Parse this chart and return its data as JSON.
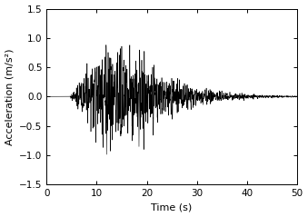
{
  "title": "",
  "xlabel": "Time (s)",
  "ylabel": "Acceleration (m/s²)",
  "xlim": [
    0,
    50
  ],
  "ylim": [
    -1.5,
    1.5
  ],
  "xticks": [
    0,
    10,
    20,
    30,
    40,
    50
  ],
  "yticks": [
    -1.5,
    -1.0,
    -0.5,
    0.0,
    0.5,
    1.0,
    1.5
  ],
  "line_color": "#000000",
  "linewidth": 0.4,
  "figsize": [
    3.39,
    2.39
  ],
  "dpi": 100,
  "dt": 0.01,
  "duration": 50,
  "seed": 42,
  "peak_amplitude": 1.12,
  "t_start": 4.5,
  "t_peak1": 10.0,
  "t_peak2": 18.0,
  "t_end": 50.0
}
